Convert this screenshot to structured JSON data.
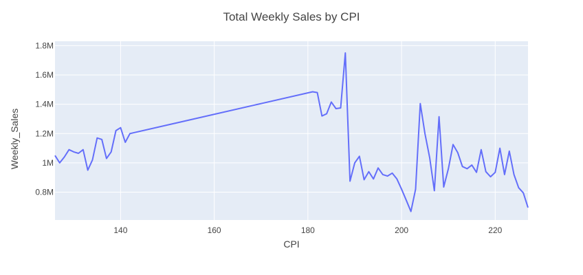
{
  "chart_data": {
    "type": "line",
    "title": "Total Weekly Sales by CPI",
    "xlabel": "CPI",
    "ylabel": "Weekly_Sales",
    "xlim": [
      126,
      227
    ],
    "ylim": [
      610000,
      1830000
    ],
    "xticks": [
      140,
      160,
      180,
      200,
      220
    ],
    "xtick_labels": [
      "140",
      "160",
      "180",
      "200",
      "220"
    ],
    "yticks": [
      800000,
      1000000,
      1200000,
      1400000,
      1600000,
      1800000
    ],
    "ytick_labels": [
      "0.8M",
      "1M",
      "1.2M",
      "1.4M",
      "1.6M",
      "1.8M"
    ],
    "grid": true,
    "colors": {
      "line": "#636efa",
      "plot_bg": "#e5ecf6",
      "grid": "#ffffff"
    },
    "series": [
      {
        "x": [
          126,
          127,
          128,
          129,
          130,
          131,
          132,
          133,
          134,
          135,
          136,
          137,
          138,
          139,
          140,
          141,
          142,
          181,
          182,
          183,
          184,
          185,
          186,
          187,
          188,
          189,
          190,
          191,
          192,
          193,
          194,
          195,
          196,
          197,
          198,
          199,
          200,
          201,
          202,
          203,
          204,
          205,
          206,
          207,
          208,
          209,
          210,
          211,
          212,
          213,
          214,
          215,
          216,
          217,
          218,
          219,
          220,
          221,
          222,
          223,
          224,
          225,
          226,
          227
        ],
        "y": [
          1050000,
          1000000,
          1040000,
          1090000,
          1075000,
          1065000,
          1090000,
          950000,
          1020000,
          1170000,
          1160000,
          1030000,
          1075000,
          1220000,
          1240000,
          1140000,
          1200000,
          1485000,
          1480000,
          1320000,
          1335000,
          1415000,
          1370000,
          1375000,
          1750000,
          875000,
          1000000,
          1045000,
          885000,
          940000,
          890000,
          965000,
          920000,
          910000,
          930000,
          890000,
          820000,
          745000,
          668000,
          820000,
          1405000,
          1200000,
          1035000,
          810000,
          1315000,
          835000,
          960000,
          1125000,
          1070000,
          975000,
          960000,
          985000,
          935000,
          1090000,
          940000,
          905000,
          935000,
          1100000,
          920000,
          1080000,
          920000,
          830000,
          795000,
          695000
        ]
      }
    ]
  }
}
